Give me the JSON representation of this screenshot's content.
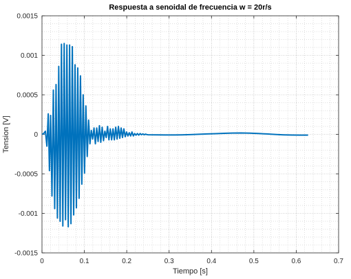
{
  "chart_data": {
    "type": "line",
    "title": "Respuesta a senoidal de frecuencia w = 20r/s",
    "xlabel": "Tiempo [s]",
    "ylabel": "Tension [V]",
    "xlim": [
      0,
      0.7
    ],
    "ylim": [
      -0.0015,
      0.0015
    ],
    "xticks": [
      0,
      0.1,
      0.2,
      0.3,
      0.4,
      0.5,
      0.6,
      0.7
    ],
    "xtick_labels": [
      "0",
      "0.1",
      "0.2",
      "0.3",
      "0.4",
      "0.5",
      "0.6",
      "0.7"
    ],
    "yticks": [
      -0.0015,
      -0.001,
      -0.0005,
      0,
      0.0005,
      0.001,
      0.0015
    ],
    "ytick_labels": [
      "-0.0015",
      "-0.001",
      "-0.0005",
      "0",
      "0.0005",
      "0.001",
      "0.0015"
    ],
    "grid": true,
    "minor_grid": true,
    "line_color": "#0072BD",
    "series": [
      {
        "x": [
          0,
          0.004,
          0.008,
          0.0116,
          0.0148,
          0.0176,
          0.0204,
          0.0236,
          0.0268,
          0.03,
          0.0332,
          0.0364,
          0.0396,
          0.0428,
          0.046,
          0.0492,
          0.0524,
          0.0556,
          0.0588,
          0.062,
          0.0652,
          0.0684,
          0.0716,
          0.0748,
          0.078,
          0.0812,
          0.0844,
          0.0876,
          0.0908,
          0.094,
          0.0972,
          0.1004,
          0.1036,
          0.1068,
          0.11,
          0.1132,
          0.1164,
          0.1196,
          0.1228,
          0.126,
          0.1292,
          0.1324,
          0.1356,
          0.1388,
          0.142,
          0.1452,
          0.1484,
          0.1516,
          0.1548,
          0.158,
          0.1612,
          0.1644,
          0.1676,
          0.1708,
          0.174,
          0.1772,
          0.1804,
          0.1836,
          0.1868,
          0.19,
          0.1932,
          0.1964,
          0.1996,
          0.2028,
          0.206,
          0.2092,
          0.2124,
          0.2156,
          0.2188,
          0.222,
          0.2252,
          0.2284,
          0.2316,
          0.2348,
          0.238,
          0.2412,
          0.2444,
          0.2476,
          0.25,
          0.27,
          0.29,
          0.31,
          0.33,
          0.35,
          0.37,
          0.39,
          0.41,
          0.43,
          0.45,
          0.47,
          0.49,
          0.51,
          0.53,
          0.55,
          0.57,
          0.59,
          0.61,
          0.628
        ],
        "y": [
          0,
          1e-05,
          4e-05,
          -0.00015,
          0.00026,
          -0.00046,
          0.00024,
          -0.00078,
          0.00056,
          -0.00094,
          0.00063,
          -0.00106,
          0.00086,
          -0.0011,
          0.00114,
          -0.00116,
          0.00115,
          -0.00108,
          0.00113,
          -0.00117,
          0.00113,
          -0.00113,
          0.00111,
          -0.00102,
          0.00088,
          -0.00093,
          0.00084,
          -0.00081,
          0.00074,
          -0.00063,
          0.0005,
          -0.00049,
          0.00036,
          -0.00028,
          0.00018,
          -0.00012,
          5e-05,
          -6e-05,
          8e-05,
          -0.00012,
          8e-05,
          -9e-05,
          0.00011,
          -0.0001,
          9e-05,
          -8e-05,
          4e-05,
          -4e-05,
          0.0001,
          -7e-05,
          7e-05,
          -7e-05,
          7e-05,
          -7e-05,
          9e-05,
          -6e-05,
          0.0001,
          -5e-05,
          8e-05,
          -4e-05,
          7e-05,
          -3e-05,
          3e-05,
          -2e-05,
          2e-05,
          -2e-05,
          3e-05,
          -2e-05,
          1e-05,
          -1e-05,
          1e-05,
          -1e-05,
          1e-05,
          -5e-06,
          5e-06,
          -5e-06,
          3e-06,
          -3e-06,
          -5e-06,
          -6e-06,
          -8e-06,
          -8e-06,
          -6e-06,
          -3e-06,
          1e-06,
          5e-06,
          9e-06,
          1.3e-05,
          1.6e-05,
          1.7e-05,
          1.5e-05,
          1.1e-05,
          5e-06,
          -1e-06,
          -6e-06,
          -9e-06,
          -1e-05,
          -1e-05
        ]
      }
    ]
  }
}
